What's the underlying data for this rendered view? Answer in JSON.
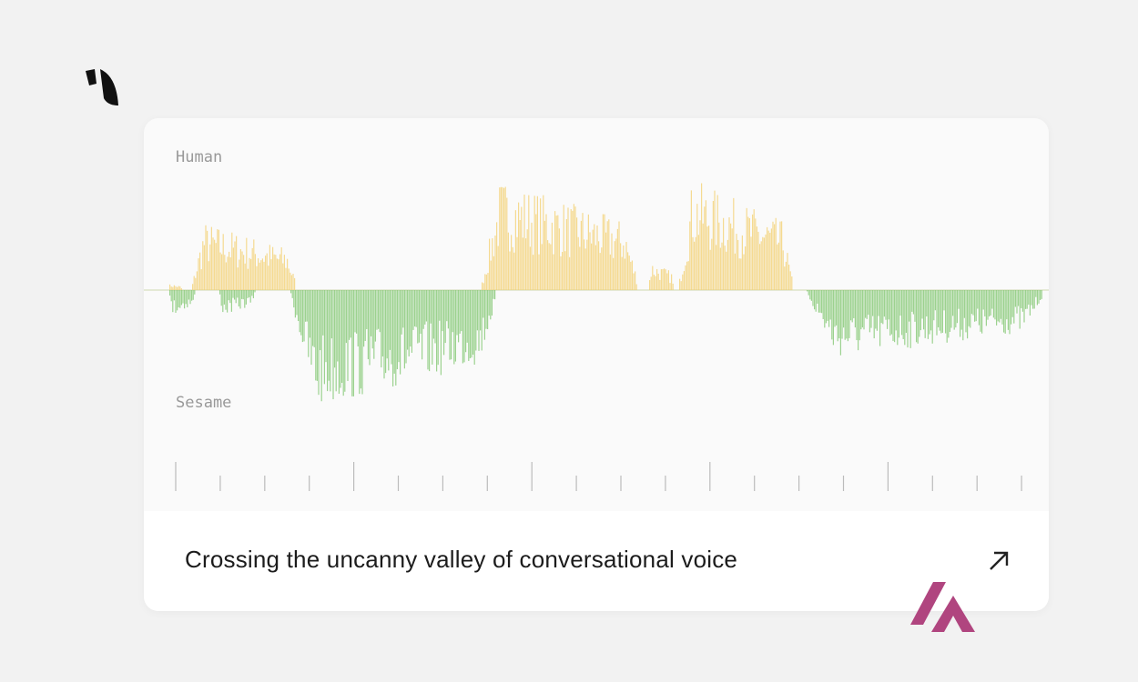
{
  "card": {
    "top_label": "Human",
    "bottom_label": "Sesame",
    "title": "Crossing the uncanny valley of conversational voice"
  }
}
